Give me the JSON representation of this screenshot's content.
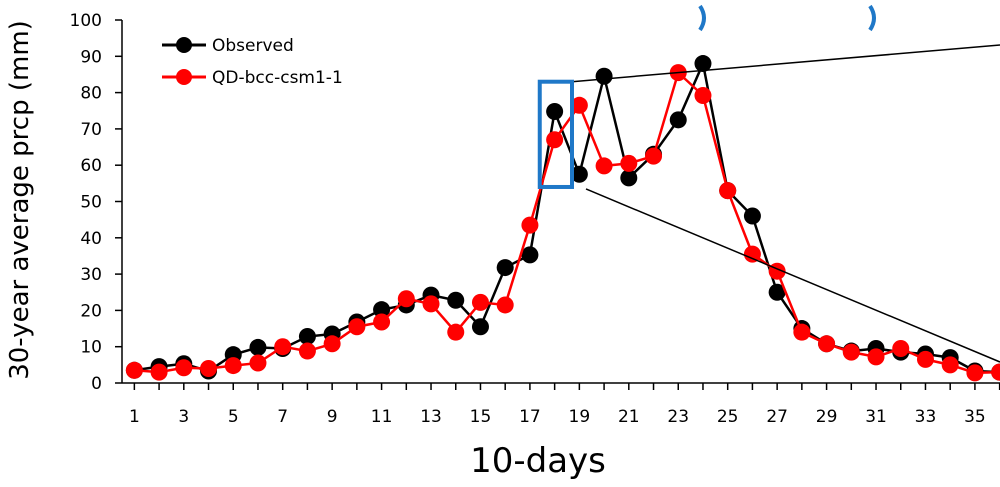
{
  "chart_data": {
    "type": "line",
    "xlabel": "10-days",
    "ylabel": "30-year average prcp (mm)",
    "xlim": [
      0.5,
      36.5
    ],
    "ylim": [
      0,
      100
    ],
    "x_ticks": [
      1,
      3,
      5,
      7,
      9,
      11,
      13,
      15,
      17,
      19,
      21,
      23,
      25,
      27,
      29,
      31,
      33,
      35
    ],
    "y_ticks": [
      0,
      10,
      20,
      30,
      40,
      50,
      60,
      70,
      80,
      90
    ],
    "y_top_label_partial": "100",
    "legend_position": "top-left",
    "x": [
      1,
      2,
      3,
      4,
      5,
      6,
      7,
      8,
      9,
      10,
      11,
      12,
      13,
      14,
      15,
      16,
      17,
      18,
      19,
      20,
      21,
      22,
      23,
      24,
      25,
      26,
      27,
      28,
      29,
      30,
      31,
      32,
      33,
      34,
      35,
      36
    ],
    "series": [
      {
        "name": "Observed",
        "color": "#000000",
        "values": [
          3.5,
          4.5,
          5.3,
          3.3,
          7.8,
          9.8,
          9.5,
          12.8,
          13.5,
          16.8,
          20.2,
          21.5,
          24.2,
          22.8,
          15.5,
          31.8,
          35.3,
          74.8,
          57.5,
          84.5,
          56.5,
          63.0,
          72.5,
          88.0,
          53.0,
          46.0,
          25.0,
          15.0,
          10.8,
          8.8,
          9.5,
          8.5,
          8.0,
          7.0,
          3.3,
          3.0
        ]
      },
      {
        "name": "QD-bcc-csm1-1",
        "color": "#ff0000",
        "values": [
          3.5,
          3.0,
          4.2,
          4.0,
          4.8,
          5.5,
          10.0,
          8.8,
          10.8,
          15.5,
          16.8,
          23.2,
          21.8,
          14.0,
          22.2,
          21.5,
          43.5,
          67.0,
          76.5,
          59.8,
          60.5,
          62.5,
          85.5,
          79.2,
          53.0,
          35.5,
          30.8,
          14.0,
          10.8,
          8.5,
          7.2,
          9.5,
          6.5,
          5.0,
          2.8,
          3.0
        ]
      }
    ],
    "annotations": {
      "highlight_box": {
        "x_range": [
          17.6,
          18.5
        ],
        "y_range": [
          54,
          83
        ],
        "color": "#1f78c8"
      },
      "zoom_lines_color": "#000000"
    }
  }
}
